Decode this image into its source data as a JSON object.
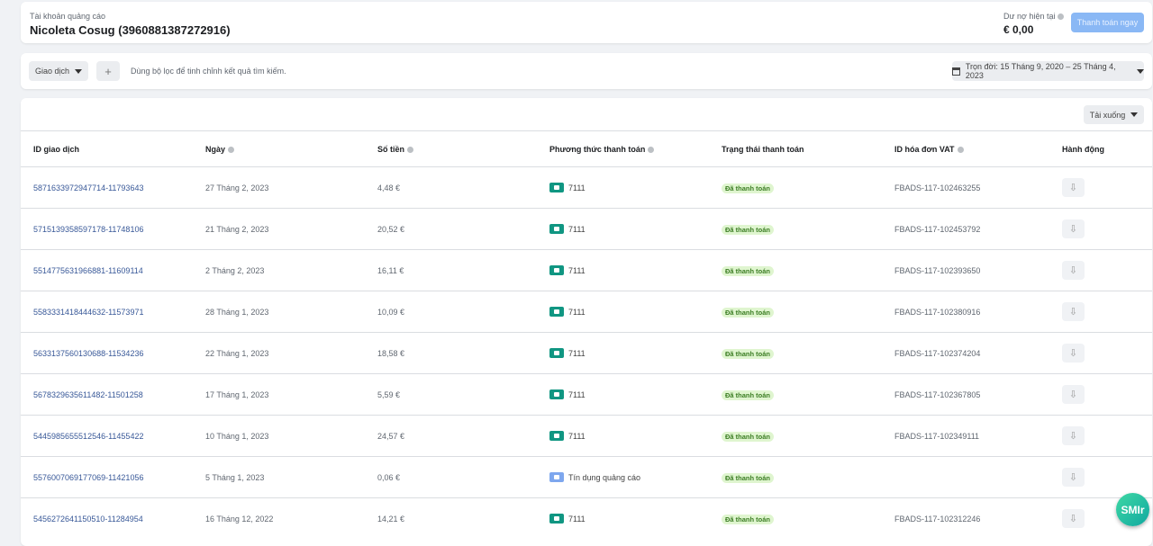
{
  "account": {
    "label": "Tài khoản quảng cáo",
    "name": "Nicoleta Cosug (3960881387272916)",
    "balance_label": "Dư nợ hiện tại",
    "balance": "€ 0,00",
    "pay_button": "Thanh toán ngay"
  },
  "filters": {
    "type_dropdown": "Giao dịch",
    "add": "+",
    "hint": "Dùng bộ lọc để tinh chỉnh kết quả tìm kiếm.",
    "date_range": "Trọn đời: 15 Tháng 9, 2020 – 25 Tháng 4, 2023"
  },
  "table": {
    "download": "Tải xuống",
    "columns": [
      "ID giao dịch",
      "Ngày",
      "Số tiền",
      "Phương thức thanh toán",
      "Trạng thái thanh toán",
      "ID hóa đơn VAT",
      "Hành động"
    ],
    "rows": [
      {
        "id": "5871633972947714-11793643",
        "date": "27 Tháng 2, 2023",
        "amount": "4,48 €",
        "method": "7111",
        "method_icon": "card",
        "status": "Đã thanh toán",
        "vat": "FBADS-117-102463255"
      },
      {
        "id": "5715139358597178-11748106",
        "date": "21 Tháng 2, 2023",
        "amount": "20,52 €",
        "method": "7111",
        "method_icon": "card",
        "status": "Đã thanh toán",
        "vat": "FBADS-117-102453792"
      },
      {
        "id": "5514775631966881-11609114",
        "date": "2 Tháng 2, 2023",
        "amount": "16,11 €",
        "method": "7111",
        "method_icon": "card",
        "status": "Đã thanh toán",
        "vat": "FBADS-117-102393650"
      },
      {
        "id": "5583331418444632-11573971",
        "date": "28 Tháng 1, 2023",
        "amount": "10,09 €",
        "method": "7111",
        "method_icon": "card",
        "status": "Đã thanh toán",
        "vat": "FBADS-117-102380916"
      },
      {
        "id": "5633137560130688-11534236",
        "date": "22 Tháng 1, 2023",
        "amount": "18,58 €",
        "method": "7111",
        "method_icon": "card",
        "status": "Đã thanh toán",
        "vat": "FBADS-117-102374204"
      },
      {
        "id": "5678329635611482-11501258",
        "date": "17 Tháng 1, 2023",
        "amount": "5,59 €",
        "method": "7111",
        "method_icon": "card",
        "status": "Đã thanh toán",
        "vat": "FBADS-117-102367805"
      },
      {
        "id": "5445985655512546-11455422",
        "date": "10 Tháng 1, 2023",
        "amount": "24,57 €",
        "method": "7111",
        "method_icon": "card",
        "status": "Đã thanh toán",
        "vat": "FBADS-117-102349111"
      },
      {
        "id": "5576007069177069-11421056",
        "date": "5 Tháng 1, 2023",
        "amount": "0,06 €",
        "method": "Tín dụng quảng cáo",
        "method_icon": "credit",
        "status": "Đã thanh toán",
        "vat": ""
      },
      {
        "id": "5456272641150510-11284954",
        "date": "16 Tháng 12, 2022",
        "amount": "14,21 €",
        "method": "7111",
        "method_icon": "card",
        "status": "Đã thanh toán",
        "vat": "FBADS-117-102312246"
      }
    ]
  },
  "widget": {
    "label": "SMIr"
  },
  "colors": {
    "link": "#385898",
    "pay_button": "#8ab8f5",
    "card_icon": "#109682",
    "badge_bg": "#dff5cf"
  }
}
